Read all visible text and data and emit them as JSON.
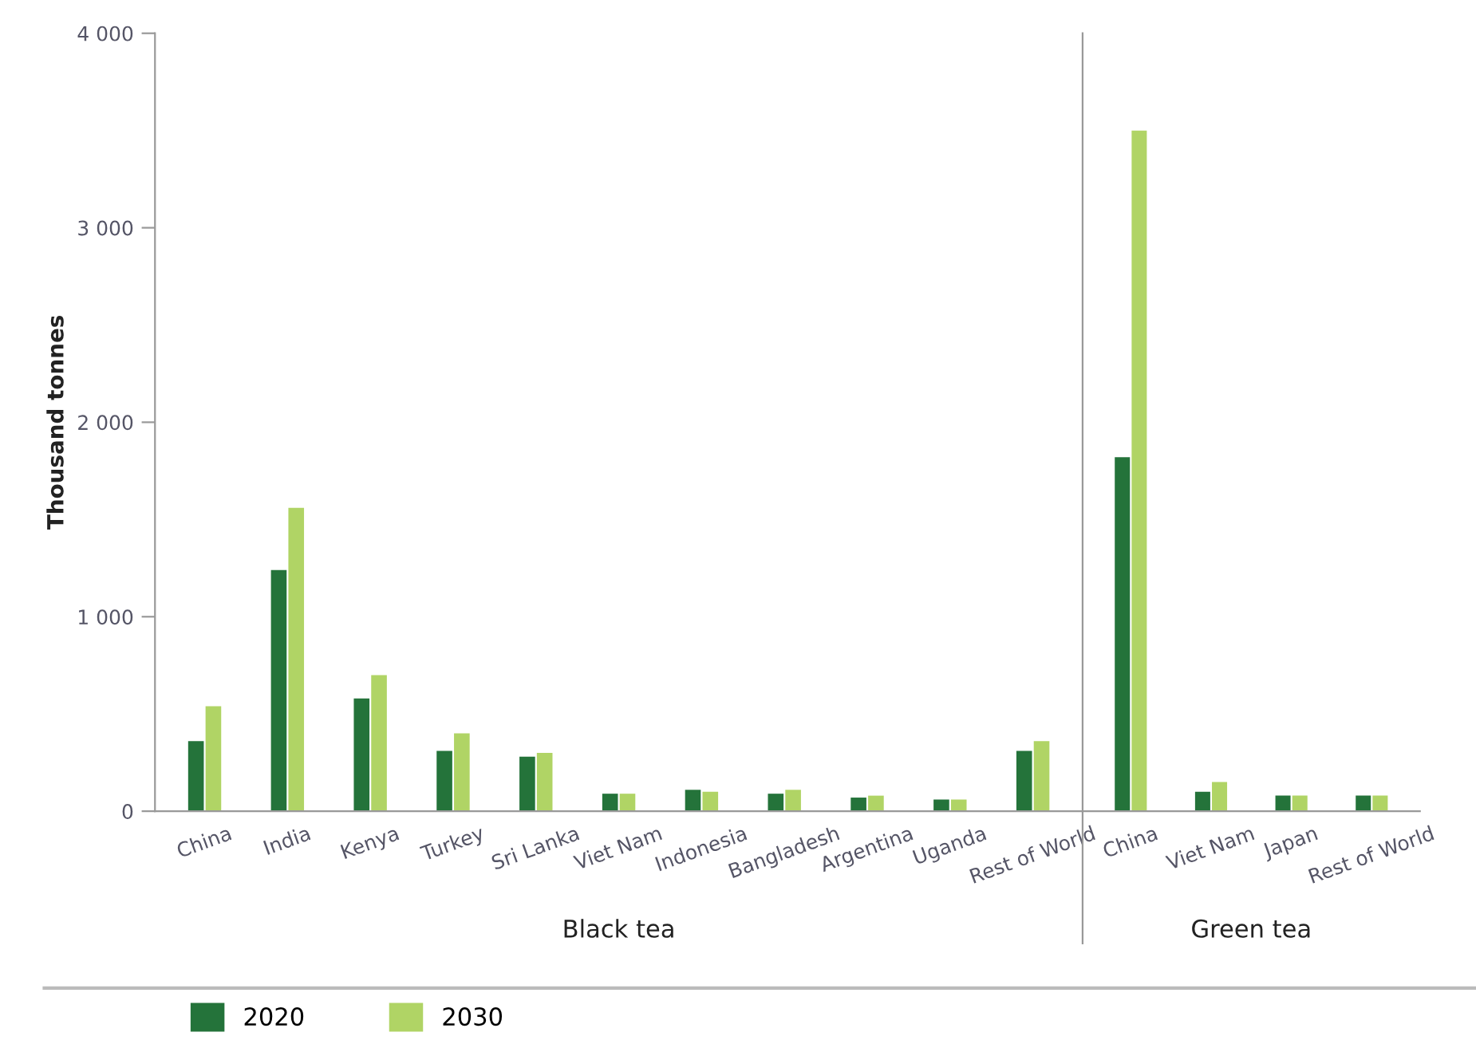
{
  "chart_data": [
    {
      "type": "bar",
      "xlabel": "Black tea",
      "ylabel": "Thousand tonnes",
      "categories": [
        "China",
        "India",
        "Kenya",
        "Turkey",
        "Sri Lanka",
        "Viet Nam",
        "Indonesia",
        "Bangladesh",
        "Argentina",
        "Uganda",
        "Rest of World"
      ],
      "series": [
        {
          "name": "2020",
          "color": "#24733a",
          "values": [
            360,
            1240,
            580,
            310,
            280,
            90,
            110,
            90,
            70,
            60,
            310
          ]
        },
        {
          "name": "2030",
          "color": "#b0d465",
          "values": [
            540,
            1560,
            700,
            400,
            300,
            90,
            100,
            110,
            80,
            60,
            360
          ]
        }
      ],
      "ylim": [
        0,
        4000
      ],
      "yticks": [
        0,
        {
          "value": 1000,
          "label": "1 000"
        },
        {
          "value": 2000,
          "label": "2 000"
        },
        {
          "value": 3000,
          "label": "3 000"
        },
        {
          "value": 4000,
          "label": "4 000"
        }
      ],
      "grid": false,
      "legend": "bottom"
    },
    {
      "type": "bar",
      "xlabel": "Green tea",
      "categories": [
        "China",
        "Viet Nam",
        "Japan",
        "Rest of World"
      ],
      "series": [
        {
          "name": "2020",
          "color": "#24733a",
          "values": [
            1820,
            100,
            80,
            80
          ]
        },
        {
          "name": "2030",
          "color": "#b0d465",
          "values": [
            3500,
            150,
            80,
            80
          ]
        }
      ],
      "ylim": [
        0,
        4000
      ],
      "tick_labels": "x",
      "grid": false,
      "legend": false
    }
  ]
}
